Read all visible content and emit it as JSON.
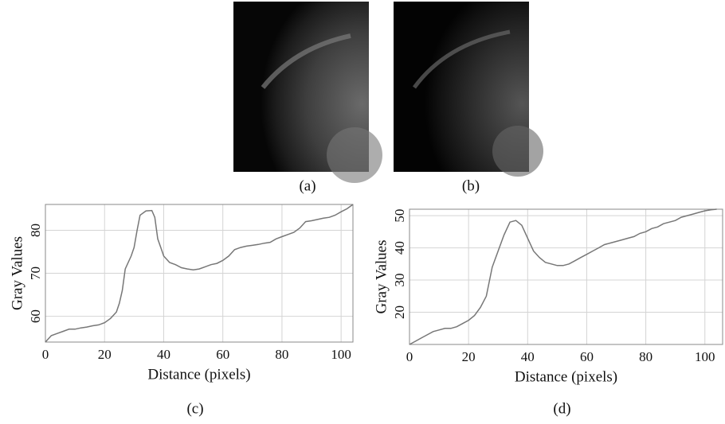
{
  "images": [
    {
      "caption": "(a)"
    },
    {
      "caption": "(b)"
    }
  ],
  "chart_data": [
    {
      "type": "line",
      "caption": "(c)",
      "xlabel": "Distance (pixels)",
      "ylabel": "Gray Values",
      "color": "#777777",
      "grid": true,
      "xlim": [
        0,
        104
      ],
      "ylim": [
        54,
        86
      ],
      "xticks": [
        0,
        20,
        40,
        60,
        80,
        100
      ],
      "yticks": [
        60,
        70,
        80
      ],
      "x": [
        0,
        2,
        4,
        6,
        8,
        10,
        12,
        14,
        16,
        18,
        20,
        22,
        24,
        25,
        26,
        27,
        29,
        30,
        31,
        32,
        34,
        36,
        37,
        38,
        39,
        40,
        42,
        44,
        46,
        48,
        50,
        52,
        54,
        56,
        58,
        60,
        62,
        64,
        66,
        68,
        70,
        72,
        74,
        76,
        78,
        80,
        82,
        84,
        86,
        88,
        90,
        92,
        94,
        96,
        98,
        100,
        102,
        104
      ],
      "values": [
        54,
        55.5,
        56,
        56.5,
        57,
        57,
        57.3,
        57.5,
        57.8,
        58,
        58.5,
        59.5,
        61,
        63,
        66,
        71,
        74,
        76,
        80,
        83.5,
        84.5,
        84.6,
        83,
        78,
        76,
        74,
        72.5,
        72,
        71.3,
        71,
        70.8,
        71,
        71.5,
        72,
        72.3,
        73,
        74,
        75.5,
        76,
        76.3,
        76.5,
        76.7,
        77,
        77.2,
        78,
        78.5,
        79,
        79.5,
        80.5,
        82,
        82.2,
        82.5,
        82.8,
        83,
        83.5,
        84.3,
        85,
        86
      ]
    },
    {
      "type": "line",
      "caption": "(d)",
      "xlabel": "Distance (pixels)",
      "ylabel": "Gray Values",
      "color": "#777777",
      "grid": true,
      "xlim": [
        0,
        106
      ],
      "ylim": [
        10,
        52
      ],
      "xticks": [
        0,
        20,
        40,
        60,
        80,
        100
      ],
      "yticks": [
        20,
        30,
        40,
        50
      ],
      "x": [
        0,
        2,
        4,
        6,
        8,
        10,
        12,
        14,
        16,
        18,
        20,
        22,
        24,
        26,
        28,
        30,
        32,
        34,
        36,
        38,
        40,
        42,
        44,
        46,
        48,
        50,
        52,
        54,
        56,
        58,
        60,
        62,
        64,
        66,
        68,
        70,
        72,
        74,
        76,
        78,
        80,
        82,
        84,
        86,
        88,
        90,
        92,
        94,
        96,
        98,
        100,
        102,
        104
      ],
      "values": [
        10,
        11,
        12,
        13,
        14,
        14.5,
        15,
        15,
        15.5,
        16.5,
        17.5,
        19,
        21.5,
        25,
        34,
        39,
        44,
        48,
        48.5,
        47,
        43,
        39,
        37,
        35.5,
        35,
        34.5,
        34.5,
        35,
        36,
        37,
        38,
        39,
        40,
        41,
        41.5,
        42,
        42.5,
        43,
        43.5,
        44.5,
        45,
        46,
        46.5,
        47.5,
        48,
        48.5,
        49.5,
        50,
        50.5,
        51,
        51.5,
        51.8,
        52
      ]
    }
  ]
}
